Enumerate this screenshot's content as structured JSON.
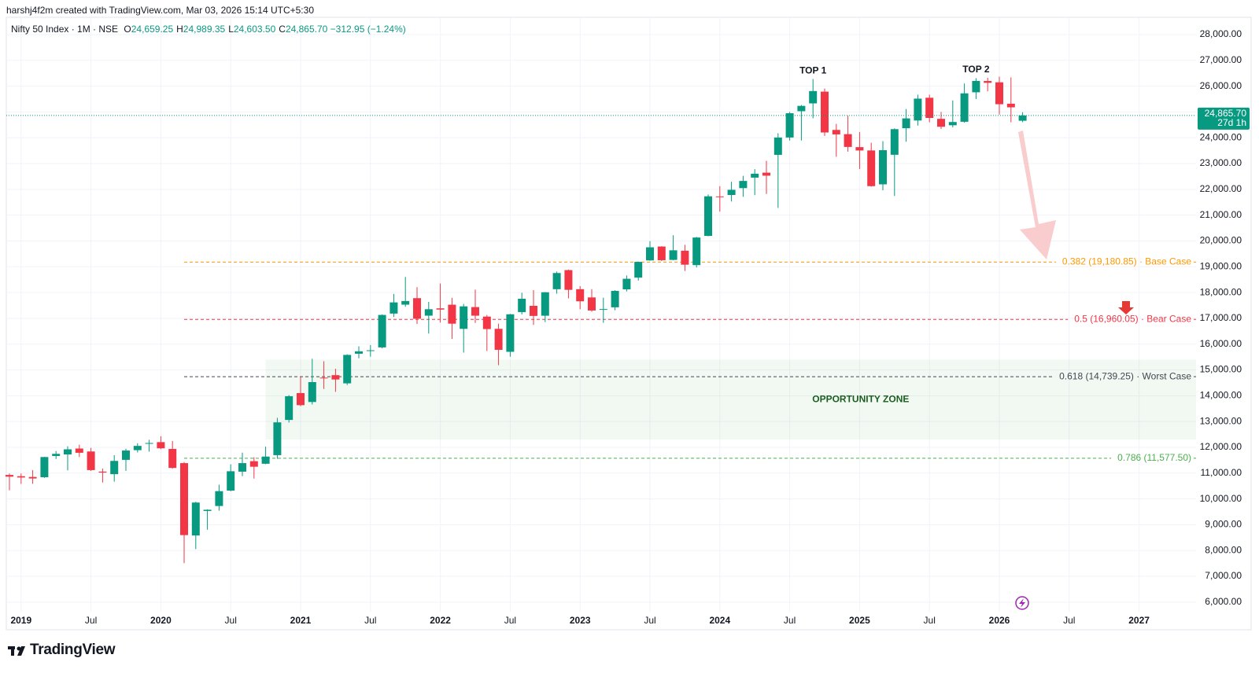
{
  "header": {
    "credit": "harshj4f2m created with TradingView.com, Mar 03, 2026 15:14 UTC+5:30",
    "symbol": "Nifty 50 Index · 1M · NSE",
    "ohlc": [
      {
        "key": "O",
        "text": "24,659.25"
      },
      {
        "key": "H",
        "text": "24,989.35"
      },
      {
        "key": "L",
        "text": "24,603.50"
      },
      {
        "key": "C",
        "text": "24,865.70"
      }
    ],
    "change": "−312.95 (−1.24%)"
  },
  "footer": {
    "brand": "TradingView"
  },
  "chart_data": {
    "type": "candlestick",
    "up_color": "#089981",
    "down_color": "#f23645",
    "categories": [
      "2018-12",
      "2019-01",
      "2019-02",
      "2019-03",
      "2019-04",
      "2019-05",
      "2019-06",
      "2019-07",
      "2019-08",
      "2019-09",
      "2019-10",
      "2019-11",
      "2019-12",
      "2020-01",
      "2020-02",
      "2020-03",
      "2020-04",
      "2020-05",
      "2020-06",
      "2020-07",
      "2020-08",
      "2020-09",
      "2020-10",
      "2020-11",
      "2020-12",
      "2021-01",
      "2021-02",
      "2021-03",
      "2021-04",
      "2021-05",
      "2021-06",
      "2021-07",
      "2021-08",
      "2021-09",
      "2021-10",
      "2021-11",
      "2021-12",
      "2022-01",
      "2022-02",
      "2022-03",
      "2022-04",
      "2022-05",
      "2022-06",
      "2022-07",
      "2022-08",
      "2022-09",
      "2022-10",
      "2022-11",
      "2022-12",
      "2023-01",
      "2023-02",
      "2023-03",
      "2023-04",
      "2023-05",
      "2023-06",
      "2023-07",
      "2023-08",
      "2023-09",
      "2023-10",
      "2023-11",
      "2023-12",
      "2024-01",
      "2024-02",
      "2024-03",
      "2024-04",
      "2024-05",
      "2024-06",
      "2024-07",
      "2024-08",
      "2024-09",
      "2024-10",
      "2024-11",
      "2024-12",
      "2025-01",
      "2025-02",
      "2025-03",
      "2025-04",
      "2025-05",
      "2025-06",
      "2025-07",
      "2025-08",
      "2025-09",
      "2025-10",
      "2025-11",
      "2025-12",
      "2026-01",
      "2026-02",
      "2026-03"
    ],
    "open": [
      10930,
      10881,
      10851,
      10842,
      11665,
      11725,
      11954,
      11840,
      11060,
      10960,
      11515,
      11891,
      12137,
      12202,
      11939,
      11388,
      8584,
      9533,
      9726,
      10323,
      11057,
      11464,
      11364,
      11697,
      13062,
      14104,
      13758,
      14702,
      14798,
      14481,
      15629,
      15755,
      15874,
      17185,
      17531,
      17783,
      17104,
      17388,
      17529,
      16593,
      17437,
      17068,
      16594,
      15703,
      17243,
      17485,
      17102,
      18130,
      18871,
      18131,
      17811,
      17360,
      17428,
      18124,
      18579,
      19246,
      19785,
      19265,
      19622,
      19064,
      20195,
      21727,
      21781,
      22048,
      22455,
      22648,
      23338,
      24010,
      25030,
      25333,
      25788,
      24304,
      24140,
      23637,
      23509,
      22195,
      23341,
      24370,
      24669,
      25551,
      24734,
      24485,
      24620,
      25763,
      26200,
      26150,
      25320,
      24659.25
    ],
    "high": [
      10985,
      10987,
      11118,
      11630,
      11856,
      12041,
      12103,
      11981,
      11181,
      11695,
      11945,
      12158,
      12293,
      12430,
      12246,
      11433,
      9889,
      9598,
      10553,
      11341,
      11794,
      11618,
      12025,
      13145,
      14025,
      14754,
      15431,
      15337,
      15044,
      15606,
      15916,
      15962,
      17153,
      17948,
      18604,
      18210,
      17639,
      18351,
      17794,
      17559,
      18115,
      17132,
      16794,
      17172,
      17992,
      18096,
      18022,
      18816,
      18888,
      18251,
      18134,
      17800,
      18089,
      18663,
      19202,
      19992,
      19796,
      20222,
      19850,
      20158,
      21801,
      22124,
      22297,
      22526,
      22783,
      23110,
      24174,
      24999,
      25268,
      26277,
      25908,
      24538,
      24857,
      24226,
      23807,
      23869,
      24365,
      25116,
      25669,
      25669,
      25000,
      25448,
      26104,
      26310,
      26325,
      26370,
      26340,
      24989.35
    ],
    "low": [
      10333,
      10583,
      10585,
      10817,
      11549,
      11108,
      11626,
      11086,
      10637,
      10670,
      11090,
      11802,
      11832,
      11929,
      11175,
      7511,
      8055,
      8806,
      9544,
      10299,
      10882,
      10790,
      11347,
      11557,
      12962,
      13597,
      13662,
      14264,
      14151,
      14417,
      15450,
      15513,
      15835,
      17055,
      17452,
      16782,
      16410,
      16837,
      16203,
      15671,
      16824,
      15736,
      15183,
      15512,
      17154,
      16748,
      16855,
      17959,
      17774,
      17353,
      17255,
      16828,
      17312,
      18042,
      18465,
      19234,
      19223,
      19255,
      18837,
      18973,
      20183,
      21138,
      21530,
      21711,
      21777,
      21821,
      21281,
      23893,
      23894,
      24754,
      24073,
      23263,
      23460,
      22787,
      22105,
      21965,
      21744,
      23847,
      24473,
      24599,
      24337,
      24404,
      24588,
      25500,
      25800,
      24900,
      24600,
      24603.5
    ],
    "close": [
      10863,
      10831,
      10793,
      11624,
      11748,
      11923,
      11789,
      11118,
      11023,
      11474,
      11877,
      12056,
      12168,
      11962,
      11202,
      8598,
      9860,
      9580,
      10302,
      11073,
      11388,
      11248,
      11642,
      12969,
      13982,
      13635,
      14529,
      14691,
      14631,
      15583,
      15722,
      15763,
      17132,
      17618,
      17672,
      16983,
      17354,
      17340,
      16794,
      17465,
      17103,
      16585,
      15780,
      17158,
      17759,
      17094,
      18012,
      18758,
      18105,
      17662,
      17304,
      17360,
      18065,
      18534,
      19189,
      19754,
      19254,
      19638,
      19080,
      20133,
      21731,
      21726,
      21983,
      22327,
      22605,
      22531,
      24011,
      24951,
      25236,
      25811,
      24205,
      24131,
      23645,
      23508,
      22125,
      23519,
      24334,
      24751,
      25517,
      24768,
      24427,
      24611,
      25722,
      26203,
      26130,
      25300,
      25180,
      24865.7
    ],
    "ylim": [
      5630,
      28670
    ],
    "yticks": [
      {
        "value": 6000,
        "label": "6,000.00"
      },
      {
        "value": 7000,
        "label": "7,000.00"
      },
      {
        "value": 8000,
        "label": "8,000.00"
      },
      {
        "value": 9000,
        "label": "9,000.00"
      },
      {
        "value": 10000,
        "label": "10,000.00"
      },
      {
        "value": 11000,
        "label": "11,000.00"
      },
      {
        "value": 12000,
        "label": "12,000.00"
      },
      {
        "value": 13000,
        "label": "13,000.00"
      },
      {
        "value": 14000,
        "label": "14,000.00"
      },
      {
        "value": 15000,
        "label": "15,000.00"
      },
      {
        "value": 16000,
        "label": "16,000.00"
      },
      {
        "value": 17000,
        "label": "17,000.00"
      },
      {
        "value": 18000,
        "label": "18,000.00"
      },
      {
        "value": 19000,
        "label": "19,000.00"
      },
      {
        "value": 20000,
        "label": "20,000.00"
      },
      {
        "value": 21000,
        "label": "21,000.00"
      },
      {
        "value": 22000,
        "label": "22,000.00"
      },
      {
        "value": 23000,
        "label": "23,000.00"
      },
      {
        "value": 24000,
        "label": "24,000.00"
      },
      {
        "value": 25000,
        "label": "25,000.00"
      },
      {
        "value": 26000,
        "label": "26,000.00"
      },
      {
        "value": 27000,
        "label": "27,000.00"
      },
      {
        "value": 28000,
        "label": "28,000.00"
      }
    ],
    "xticks": [
      {
        "value": "2019-01",
        "label": "2019"
      },
      {
        "value": "2019-07",
        "label": "Jul"
      },
      {
        "value": "2020-01",
        "label": "2020"
      },
      {
        "value": "2020-07",
        "label": "Jul"
      },
      {
        "value": "2021-01",
        "label": "2021"
      },
      {
        "value": "2021-07",
        "label": "Jul"
      },
      {
        "value": "2022-01",
        "label": "2022"
      },
      {
        "value": "2022-07",
        "label": "Jul"
      },
      {
        "value": "2023-01",
        "label": "2023"
      },
      {
        "value": "2023-07",
        "label": "Jul"
      },
      {
        "value": "2024-01",
        "label": "2024"
      },
      {
        "value": "2024-07",
        "label": "Jul"
      },
      {
        "value": "2025-01",
        "label": "2025"
      },
      {
        "value": "2025-07",
        "label": "Jul"
      },
      {
        "value": "2026-01",
        "label": "2026"
      },
      {
        "value": "2026-07",
        "label": "Jul"
      },
      {
        "value": "2027-01",
        "label": "2027"
      }
    ],
    "grid": true,
    "last_price": {
      "value": 24865.7,
      "label": "24,865.70",
      "countdown": "27d 1h",
      "color": "#089981"
    },
    "levels": [
      {
        "value": 19180.85,
        "text": "0.382 (19,180.85) · Base Case",
        "color": "#ff9800"
      },
      {
        "value": 16960.05,
        "text": "0.5 (16,960.05) · Bear Case",
        "color": "#f23645"
      },
      {
        "value": 14739.25,
        "text": "0.618 (14,739.25) · Worst Case",
        "color": "#434651"
      },
      {
        "value": 11577.5,
        "text": "0.786 (11,577.50)",
        "color": "#4caf50"
      }
    ],
    "levels_start": "2020-03",
    "zone": {
      "label": "OPPORTUNITY ZONE",
      "top": 15400,
      "bottom": 12300,
      "start": "2020-10",
      "color": "#1b5e20"
    },
    "annotations": [
      {
        "text": "TOP 1",
        "at": "2024-09"
      },
      {
        "text": "TOP 2",
        "at": "2025-11"
      }
    ]
  }
}
